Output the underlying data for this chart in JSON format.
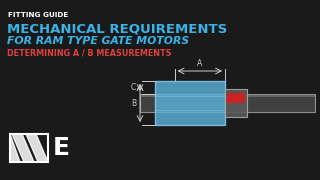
{
  "bg_color": "#1a1a1a",
  "title_small": "FITTING GUIDE",
  "title_main": "MECHANICAL REQUIREMENTS",
  "title_sub": "FOR RAM TYPE GATE MOTORS",
  "title_det": "DETERMINING A / B MEASUREMENTS",
  "title_small_color": "#ffffff",
  "title_main_color": "#3ab4e8",
  "title_sub_color": "#3ab4e8",
  "title_det_color": "#e04040",
  "logo_color": "#ffffff",
  "diagram_bg": "#2a2a2a",
  "box_fill": "#5ab0d8",
  "box_stroke": "#8ad0f0",
  "rod_fill": "#4a4a4a",
  "rod_stroke": "#aaaaaa",
  "label_color": "#cccccc",
  "arrow_color": "#cccccc"
}
